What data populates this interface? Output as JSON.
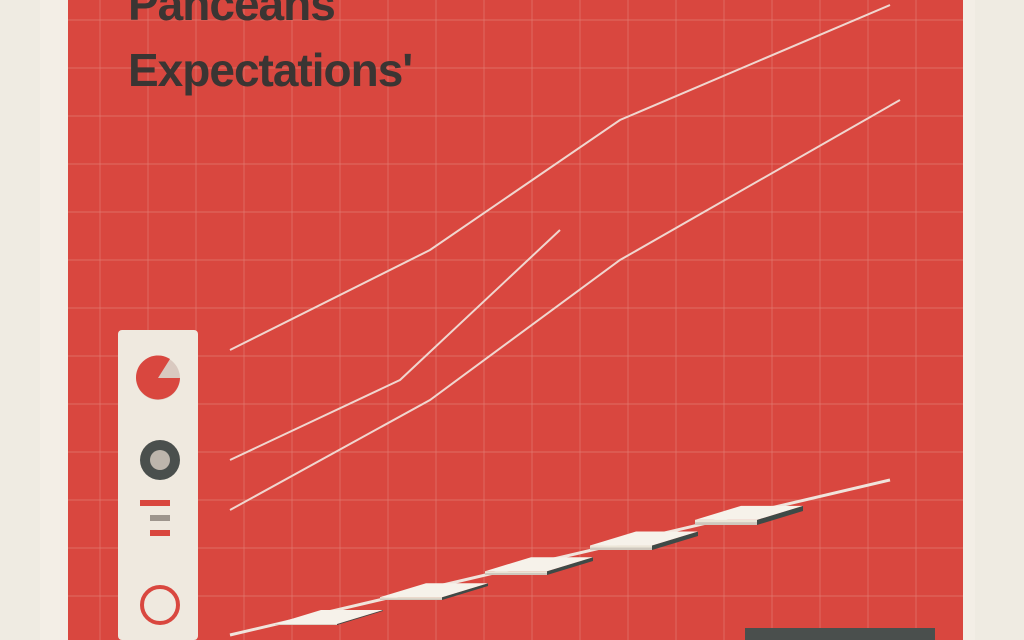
{
  "chart_data": {
    "type": "bar3d",
    "title": [
      "Panceans",
      "Expectations'"
    ],
    "values": [
      18,
      52,
      70,
      83,
      95
    ],
    "ylim": [
      0,
      100
    ],
    "color": "#ece6d8",
    "side_color": "#3f4a47",
    "grid": true
  }
}
